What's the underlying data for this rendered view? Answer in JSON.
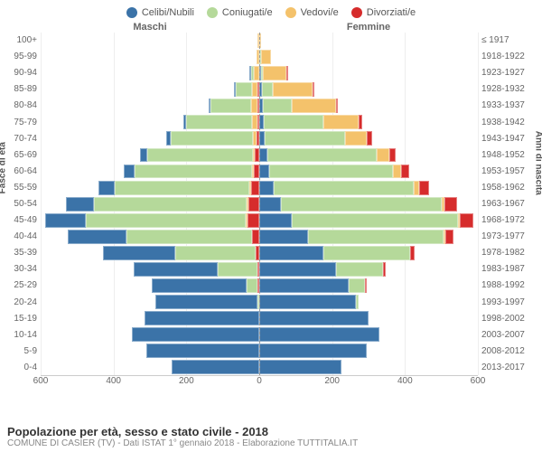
{
  "legend": [
    {
      "label": "Celibi/Nubili",
      "color": "#3b73a8"
    },
    {
      "label": "Coniugati/e",
      "color": "#b5d99a"
    },
    {
      "label": "Vedovi/e",
      "color": "#f4c26b"
    },
    {
      "label": "Divorziati/e",
      "color": "#d62c2c"
    }
  ],
  "headers": {
    "male": "Maschi",
    "female": "Femmine"
  },
  "axis": {
    "left_title": "Fasce di età",
    "right_title": "Anni di nascita",
    "xmax": 600,
    "xticks": [
      600,
      400,
      200,
      0,
      200,
      400,
      600
    ]
  },
  "colors": {
    "celibi": "#3b73a8",
    "coniugati": "#b5d99a",
    "vedovi": "#f4c26b",
    "divorziati": "#d62c2c"
  },
  "rows": [
    {
      "age": "100+",
      "birth": "≤ 1917",
      "m": [
        0,
        0,
        2,
        0
      ],
      "f": [
        0,
        0,
        5,
        0
      ]
    },
    {
      "age": "95-99",
      "birth": "1918-1922",
      "m": [
        0,
        0,
        8,
        0
      ],
      "f": [
        0,
        2,
        28,
        0
      ]
    },
    {
      "age": "90-94",
      "birth": "1923-1927",
      "m": [
        2,
        8,
        14,
        0
      ],
      "f": [
        5,
        5,
        65,
        2
      ]
    },
    {
      "age": "85-89",
      "birth": "1928-1932",
      "m": [
        4,
        45,
        15,
        2
      ],
      "f": [
        8,
        28,
        110,
        3
      ]
    },
    {
      "age": "80-84",
      "birth": "1933-1937",
      "m": [
        6,
        110,
        18,
        4
      ],
      "f": [
        10,
        80,
        120,
        6
      ]
    },
    {
      "age": "75-79",
      "birth": "1938-1942",
      "m": [
        8,
        180,
        14,
        6
      ],
      "f": [
        12,
        165,
        95,
        10
      ]
    },
    {
      "age": "70-74",
      "birth": "1943-1947",
      "m": [
        12,
        225,
        10,
        8
      ],
      "f": [
        16,
        220,
        60,
        14
      ]
    },
    {
      "age": "65-69",
      "birth": "1948-1952",
      "m": [
        20,
        290,
        6,
        12
      ],
      "f": [
        22,
        300,
        35,
        18
      ]
    },
    {
      "age": "60-64",
      "birth": "1953-1957",
      "m": [
        30,
        320,
        4,
        16
      ],
      "f": [
        28,
        340,
        22,
        22
      ]
    },
    {
      "age": "55-59",
      "birth": "1958-1962",
      "m": [
        45,
        370,
        3,
        22
      ],
      "f": [
        40,
        385,
        14,
        28
      ]
    },
    {
      "age": "50-54",
      "birth": "1963-1967",
      "m": [
        75,
        420,
        2,
        30
      ],
      "f": [
        60,
        440,
        8,
        35
      ]
    },
    {
      "age": "45-49",
      "birth": "1968-1972",
      "m": [
        110,
        440,
        1,
        32
      ],
      "f": [
        90,
        455,
        4,
        38
      ]
    },
    {
      "age": "40-44",
      "birth": "1973-1977",
      "m": [
        160,
        345,
        0,
        20
      ],
      "f": [
        135,
        370,
        2,
        22
      ]
    },
    {
      "age": "35-39",
      "birth": "1978-1982",
      "m": [
        200,
        220,
        0,
        10
      ],
      "f": [
        175,
        240,
        0,
        12
      ]
    },
    {
      "age": "30-34",
      "birth": "1983-1987",
      "m": [
        230,
        110,
        0,
        4
      ],
      "f": [
        210,
        130,
        0,
        6
      ]
    },
    {
      "age": "25-29",
      "birth": "1988-1992",
      "m": [
        260,
        30,
        0,
        1
      ],
      "f": [
        245,
        45,
        0,
        2
      ]
    },
    {
      "age": "20-24",
      "birth": "1993-1997",
      "m": [
        280,
        4,
        0,
        0
      ],
      "f": [
        265,
        8,
        0,
        0
      ]
    },
    {
      "age": "15-19",
      "birth": "1998-2002",
      "m": [
        315,
        0,
        0,
        0
      ],
      "f": [
        300,
        0,
        0,
        0
      ]
    },
    {
      "age": "10-14",
      "birth": "2003-2007",
      "m": [
        350,
        0,
        0,
        0
      ],
      "f": [
        330,
        0,
        0,
        0
      ]
    },
    {
      "age": "5-9",
      "birth": "2008-2012",
      "m": [
        310,
        0,
        0,
        0
      ],
      "f": [
        295,
        0,
        0,
        0
      ]
    },
    {
      "age": "0-4",
      "birth": "2013-2017",
      "m": [
        240,
        0,
        0,
        0
      ],
      "f": [
        225,
        0,
        0,
        0
      ]
    }
  ],
  "footer": {
    "title": "Popolazione per età, sesso e stato civile - 2018",
    "subtitle": "COMUNE DI CASIER (TV) - Dati ISTAT 1° gennaio 2018 - Elaborazione TUTTITALIA.IT"
  }
}
